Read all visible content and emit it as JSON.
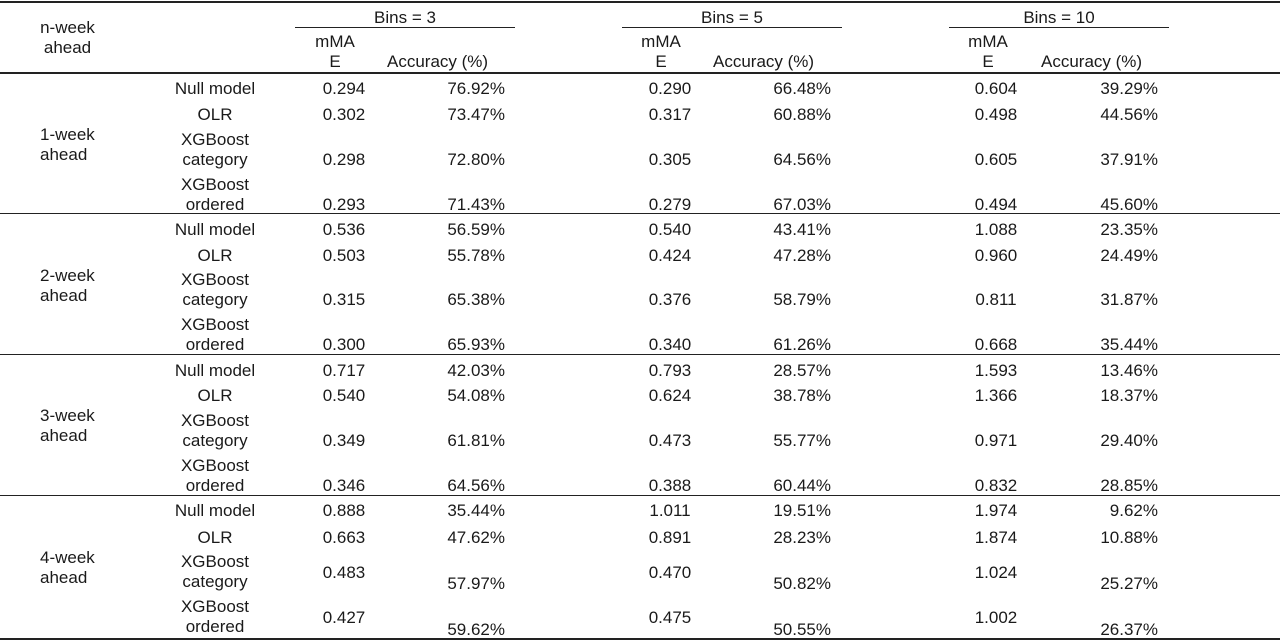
{
  "header": {
    "stub": "n-week\nahead",
    "bins": [
      "Bins = 3",
      "Bins = 5",
      "Bins = 10"
    ],
    "mmae": "mMA\nE",
    "accuracy": "Accuracy (%)"
  },
  "groups": [
    {
      "label": "1-week\nahead",
      "rows": [
        {
          "model": "Null model",
          "v": [
            "0.294",
            "76.92%",
            "0.290",
            "66.48%",
            "0.604",
            "39.29%"
          ]
        },
        {
          "model": "OLR",
          "v": [
            "0.302",
            "73.47%",
            "0.317",
            "60.88%",
            "0.498",
            "44.56%"
          ]
        },
        {
          "model": "XGBoost\ncategory",
          "v": [
            "0.298",
            "72.80%",
            "0.305",
            "64.56%",
            "0.605",
            "37.91%"
          ]
        },
        {
          "model": "XGBoost\nordered",
          "v": [
            "0.293",
            "71.43%",
            "0.279",
            "67.03%",
            "0.494",
            "45.60%"
          ]
        }
      ]
    },
    {
      "label": "2-week\nahead",
      "rows": [
        {
          "model": "Null model",
          "v": [
            "0.536",
            "56.59%",
            "0.540",
            "43.41%",
            "1.088",
            "23.35%"
          ]
        },
        {
          "model": "OLR",
          "v": [
            "0.503",
            "55.78%",
            "0.424",
            "47.28%",
            "0.960",
            "24.49%"
          ]
        },
        {
          "model": "XGBoost\ncategory",
          "v": [
            "0.315",
            "65.38%",
            "0.376",
            "58.79%",
            "0.811",
            "31.87%"
          ]
        },
        {
          "model": "XGBoost\nordered",
          "v": [
            "0.300",
            "65.93%",
            "0.340",
            "61.26%",
            "0.668",
            "35.44%"
          ]
        }
      ]
    },
    {
      "label": "3-week\nahead",
      "rows": [
        {
          "model": "Null model",
          "v": [
            "0.717",
            "42.03%",
            "0.793",
            "28.57%",
            "1.593",
            "13.46%"
          ]
        },
        {
          "model": "OLR",
          "v": [
            "0.540",
            "54.08%",
            "0.624",
            "38.78%",
            "1.366",
            "18.37%"
          ]
        },
        {
          "model": "XGBoost\ncategory",
          "v": [
            "0.349",
            "61.81%",
            "0.473",
            "55.77%",
            "0.971",
            "29.40%"
          ]
        },
        {
          "model": "XGBoost\nordered",
          "v": [
            "0.346",
            "64.56%",
            "0.388",
            "60.44%",
            "0.832",
            "28.85%"
          ]
        }
      ]
    },
    {
      "label": "4-week\nahead",
      "rows": [
        {
          "model": "Null model",
          "v": [
            "0.888",
            "35.44%",
            "1.011",
            "19.51%",
            "1.974",
            "9.62%"
          ]
        },
        {
          "model": "OLR",
          "v": [
            "0.663",
            "47.62%",
            "0.891",
            "28.23%",
            "1.874",
            "10.88%"
          ]
        },
        {
          "model": "XGBoost\ncategory",
          "v": [
            "0.483",
            "57.97%",
            "0.470",
            "50.82%",
            "1.024",
            "25.27%"
          ]
        },
        {
          "model": "XGBoost\nordered",
          "v": [
            "0.427",
            "59.62%",
            "0.475",
            "50.55%",
            "1.002",
            "26.37%"
          ]
        }
      ]
    }
  ]
}
